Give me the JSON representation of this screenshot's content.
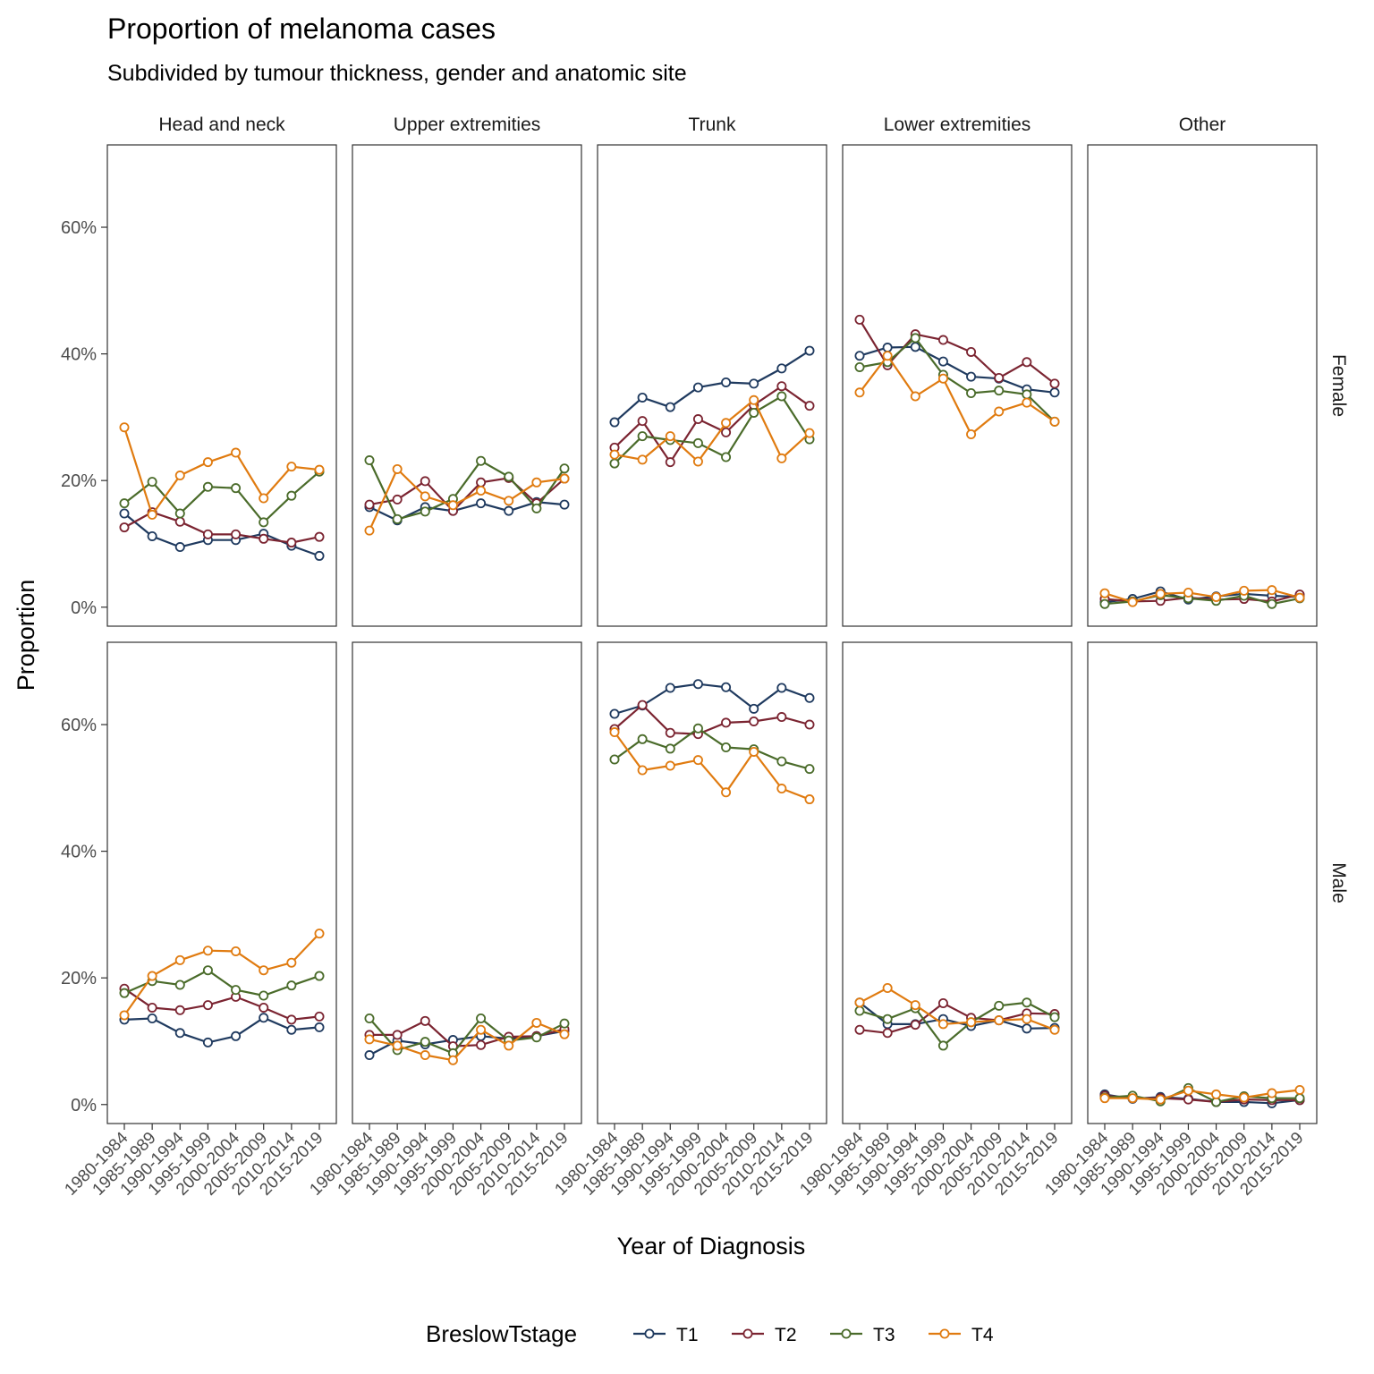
{
  "chart_data": {
    "type": "line",
    "title": "Proportion of melanoma cases",
    "subtitle": "Subdivided by tumour thickness, gender and anatomic site",
    "xlabel": "Year of Diagnosis",
    "ylabel": "Proportion",
    "y_ticks": [
      "0%",
      "20%",
      "40%",
      "60%"
    ],
    "ylim": [
      -0.03,
      0.73
    ],
    "grid": false,
    "legend_title": "BreslowTstage",
    "legend_position": "bottom",
    "categories": [
      "1980-1984",
      "1985-1989",
      "1990-1994",
      "1995-1999",
      "2000-2004",
      "2005-2009",
      "2010-2014",
      "2015-2019"
    ],
    "colors": {
      "T1": "#1f3a5f",
      "T2": "#7b2431",
      "T3": "#4a6b2a",
      "T4": "#e07b10"
    },
    "columns": [
      "Head and neck",
      "Upper extremities",
      "Trunk",
      "Lower extremities",
      "Other"
    ],
    "rows": [
      "Female",
      "Male"
    ],
    "panels": [
      {
        "row": "Female",
        "column": "Head and neck",
        "series": [
          {
            "name": "T1",
            "values": [
              0.148,
              0.112,
              0.095,
              0.106,
              0.106,
              0.116,
              0.097,
              0.081
            ]
          },
          {
            "name": "T2",
            "values": [
              0.126,
              0.15,
              0.135,
              0.115,
              0.115,
              0.108,
              0.102,
              0.111
            ]
          },
          {
            "name": "T3",
            "values": [
              0.164,
              0.198,
              0.148,
              0.19,
              0.188,
              0.134,
              0.176,
              0.214
            ]
          },
          {
            "name": "T4",
            "values": [
              0.284,
              0.146,
              0.208,
              0.229,
              0.244,
              0.172,
              0.222,
              0.217
            ]
          }
        ]
      },
      {
        "row": "Female",
        "column": "Upper extremities",
        "series": [
          {
            "name": "T1",
            "values": [
              0.158,
              0.137,
              0.158,
              0.152,
              0.164,
              0.152,
              0.166,
              0.162
            ]
          },
          {
            "name": "T2",
            "values": [
              0.162,
              0.17,
              0.199,
              0.152,
              0.197,
              0.204,
              0.164,
              0.203
            ]
          },
          {
            "name": "T3",
            "values": [
              0.232,
              0.139,
              0.151,
              0.171,
              0.231,
              0.206,
              0.156,
              0.219
            ]
          },
          {
            "name": "T4",
            "values": [
              0.121,
              0.218,
              0.175,
              0.161,
              0.184,
              0.168,
              0.197,
              0.203
            ]
          }
        ]
      },
      {
        "row": "Female",
        "column": "Trunk",
        "series": [
          {
            "name": "T1",
            "values": [
              0.292,
              0.331,
              0.316,
              0.347,
              0.355,
              0.353,
              0.377,
              0.405
            ]
          },
          {
            "name": "T2",
            "values": [
              0.252,
              0.294,
              0.229,
              0.297,
              0.276,
              0.319,
              0.349,
              0.318
            ]
          },
          {
            "name": "T3",
            "values": [
              0.227,
              0.27,
              0.264,
              0.259,
              0.237,
              0.307,
              0.333,
              0.265
            ]
          },
          {
            "name": "T4",
            "values": [
              0.241,
              0.233,
              0.27,
              0.23,
              0.291,
              0.327,
              0.235,
              0.275
            ]
          }
        ]
      },
      {
        "row": "Female",
        "column": "Lower extremities",
        "series": [
          {
            "name": "T1",
            "values": [
              0.397,
              0.41,
              0.411,
              0.388,
              0.364,
              0.361,
              0.344,
              0.339
            ]
          },
          {
            "name": "T2",
            "values": [
              0.454,
              0.382,
              0.431,
              0.422,
              0.403,
              0.362,
              0.387,
              0.353
            ]
          },
          {
            "name": "T3",
            "values": [
              0.379,
              0.387,
              0.425,
              0.367,
              0.338,
              0.342,
              0.336,
              0.293
            ]
          },
          {
            "name": "T4",
            "values": [
              0.339,
              0.397,
              0.333,
              0.361,
              0.273,
              0.309,
              0.323,
              0.293
            ]
          }
        ]
      },
      {
        "row": "Female",
        "column": "Other",
        "series": [
          {
            "name": "T1",
            "values": [
              0.008,
              0.013,
              0.025,
              0.012,
              0.017,
              0.021,
              0.018,
              0.016
            ]
          },
          {
            "name": "T2",
            "values": [
              0.013,
              0.009,
              0.01,
              0.015,
              0.012,
              0.013,
              0.009,
              0.02
            ]
          },
          {
            "name": "T3",
            "values": [
              0.005,
              0.009,
              0.019,
              0.014,
              0.01,
              0.018,
              0.005,
              0.014
            ]
          },
          {
            "name": "T4",
            "values": [
              0.022,
              0.008,
              0.021,
              0.023,
              0.016,
              0.026,
              0.027,
              0.015
            ]
          }
        ]
      },
      {
        "row": "Male",
        "column": "Head and neck",
        "series": [
          {
            "name": "T1",
            "values": [
              0.134,
              0.136,
              0.113,
              0.098,
              0.108,
              0.137,
              0.118,
              0.122
            ]
          },
          {
            "name": "T2",
            "values": [
              0.183,
              0.153,
              0.149,
              0.157,
              0.17,
              0.153,
              0.134,
              0.139
            ]
          },
          {
            "name": "T3",
            "values": [
              0.176,
              0.195,
              0.189,
              0.212,
              0.181,
              0.172,
              0.188,
              0.203
            ]
          },
          {
            "name": "T4",
            "values": [
              0.141,
              0.203,
              0.228,
              0.243,
              0.242,
              0.212,
              0.224,
              0.27
            ]
          }
        ]
      },
      {
        "row": "Male",
        "column": "Upper extremities",
        "series": [
          {
            "name": "T1",
            "values": [
              0.078,
              0.101,
              0.095,
              0.102,
              0.108,
              0.104,
              0.108,
              0.116
            ]
          },
          {
            "name": "T2",
            "values": [
              0.11,
              0.11,
              0.132,
              0.092,
              0.094,
              0.107,
              0.108,
              0.119
            ]
          },
          {
            "name": "T3",
            "values": [
              0.136,
              0.086,
              0.099,
              0.081,
              0.136,
              0.101,
              0.106,
              0.128
            ]
          },
          {
            "name": "T4",
            "values": [
              0.103,
              0.093,
              0.078,
              0.07,
              0.118,
              0.093,
              0.129,
              0.111
            ]
          }
        ]
      },
      {
        "row": "Male",
        "column": "Trunk",
        "series": [
          {
            "name": "T1",
            "values": [
              0.617,
              0.63,
              0.658,
              0.664,
              0.659,
              0.625,
              0.658,
              0.642
            ]
          },
          {
            "name": "T2",
            "values": [
              0.593,
              0.631,
              0.587,
              0.585,
              0.603,
              0.605,
              0.612,
              0.6
            ]
          },
          {
            "name": "T3",
            "values": [
              0.545,
              0.577,
              0.562,
              0.594,
              0.564,
              0.561,
              0.542,
              0.53
            ]
          },
          {
            "name": "T4",
            "values": [
              0.588,
              0.528,
              0.535,
              0.544,
              0.493,
              0.557,
              0.499,
              0.482
            ]
          }
        ]
      },
      {
        "row": "Male",
        "column": "Lower extremities",
        "series": [
          {
            "name": "T1",
            "values": [
              0.161,
              0.127,
              0.127,
              0.135,
              0.124,
              0.133,
              0.12,
              0.121
            ]
          },
          {
            "name": "T2",
            "values": [
              0.118,
              0.113,
              0.126,
              0.16,
              0.137,
              0.133,
              0.144,
              0.143
            ]
          },
          {
            "name": "T3",
            "values": [
              0.148,
              0.135,
              0.152,
              0.093,
              0.13,
              0.156,
              0.161,
              0.138
            ]
          },
          {
            "name": "T4",
            "values": [
              0.161,
              0.184,
              0.157,
              0.127,
              0.13,
              0.133,
              0.135,
              0.118
            ]
          }
        ]
      },
      {
        "row": "Male",
        "column": "Other",
        "series": [
          {
            "name": "T1",
            "values": [
              0.016,
              0.009,
              0.012,
              0.009,
              0.004,
              0.004,
              0.002,
              0.007
            ]
          },
          {
            "name": "T2",
            "values": [
              0.014,
              0.01,
              0.01,
              0.008,
              0.004,
              0.008,
              0.007,
              0.007
            ]
          },
          {
            "name": "T3",
            "values": [
              0.011,
              0.014,
              0.005,
              0.026,
              0.004,
              0.013,
              0.01,
              0.01
            ]
          },
          {
            "name": "T4",
            "values": [
              0.01,
              0.01,
              0.008,
              0.022,
              0.016,
              0.011,
              0.018,
              0.023
            ]
          }
        ]
      }
    ]
  }
}
